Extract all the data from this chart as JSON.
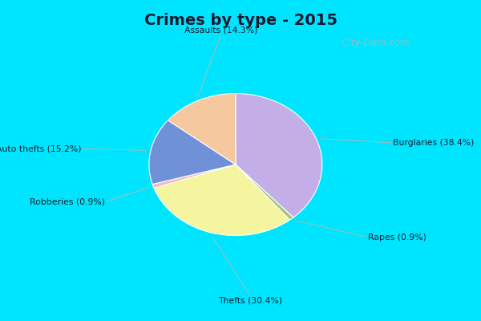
{
  "title": "Crimes by type - 2015",
  "slices": [
    {
      "label": "Burglaries (38.4%)",
      "value": 38.4,
      "color": "#c4aee8"
    },
    {
      "label": "Rapes (0.9%)",
      "value": 0.9,
      "color": "#a8c878"
    },
    {
      "label": "Thefts (30.4%)",
      "value": 30.4,
      "color": "#f5f5a0"
    },
    {
      "label": "Robberies (0.9%)",
      "value": 0.9,
      "color": "#f0b8b8"
    },
    {
      "label": "Auto thefts (15.2%)",
      "value": 15.2,
      "color": "#7090d8"
    },
    {
      "label": "Assaults (14.3%)",
      "value": 14.3,
      "color": "#f5c8a0"
    }
  ],
  "bg_cyan": "#00e5ff",
  "bg_inner": "#c8e8d8",
  "title_fontsize": 14,
  "title_color": "#1a1a2e",
  "watermark": "  City-Data.com",
  "watermark_color": "#90bcc8"
}
